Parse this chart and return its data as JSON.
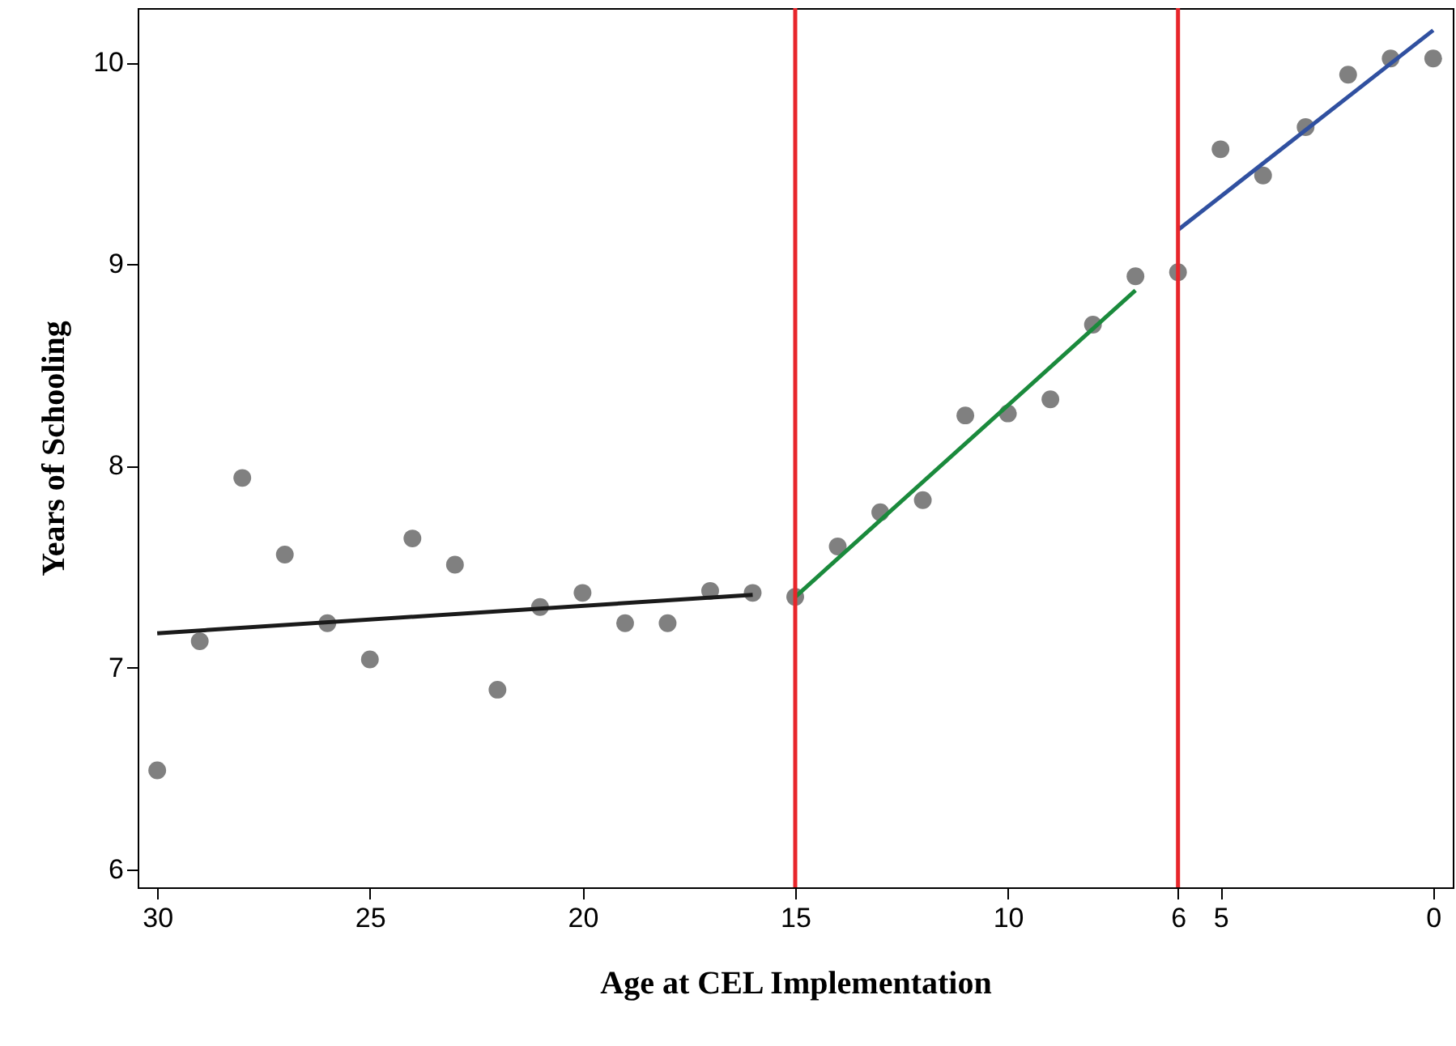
{
  "chart_data": {
    "type": "scatter",
    "xlabel": "Age at CEL Implementation",
    "ylabel": "Years of Schooling",
    "x": [
      30,
      29,
      28,
      27,
      26,
      25,
      24,
      23,
      22,
      21,
      20,
      19,
      18,
      17,
      16,
      15,
      14,
      13,
      12,
      11,
      10,
      9,
      8,
      7,
      6,
      5,
      4,
      3,
      2,
      1,
      0
    ],
    "series": [
      {
        "color": "#808080",
        "values": [
          6.49,
          7.13,
          7.94,
          7.56,
          7.22,
          7.04,
          7.64,
          7.51,
          6.89,
          7.3,
          7.37,
          7.22,
          7.22,
          7.38,
          7.37,
          7.35,
          7.6,
          7.77,
          7.83,
          8.25,
          8.26,
          8.33,
          8.7,
          8.94,
          8.96,
          9.57,
          9.44,
          9.68,
          9.94,
          10.02,
          10.02
        ]
      },
      {
        "type": "line",
        "marker": "none",
        "color": "#1a1a1a",
        "x": [
          30,
          16
        ],
        "values": [
          7.17,
          7.36
        ]
      },
      {
        "type": "line",
        "marker": "none",
        "color": "#1a8a3c",
        "x": [
          15,
          7
        ],
        "values": [
          7.35,
          8.87
        ]
      },
      {
        "type": "line",
        "marker": "none",
        "color": "#3050a0",
        "x": [
          6,
          0
        ],
        "values": [
          9.17,
          10.16
        ]
      }
    ],
    "ref_lines": [
      {
        "axis": "x",
        "value": 15,
        "color": "#e8262b"
      },
      {
        "axis": "x",
        "value": 6,
        "color": "#e8262b"
      }
    ],
    "xlim": [
      30.46,
      -0.46
    ],
    "xticks": [
      30,
      25,
      20,
      15,
      10,
      6,
      5,
      0
    ],
    "ylim": [
      5.91,
      10.27
    ],
    "yticks": [
      6,
      7,
      8,
      9,
      10
    ],
    "marker": "circle",
    "grid": false
  }
}
